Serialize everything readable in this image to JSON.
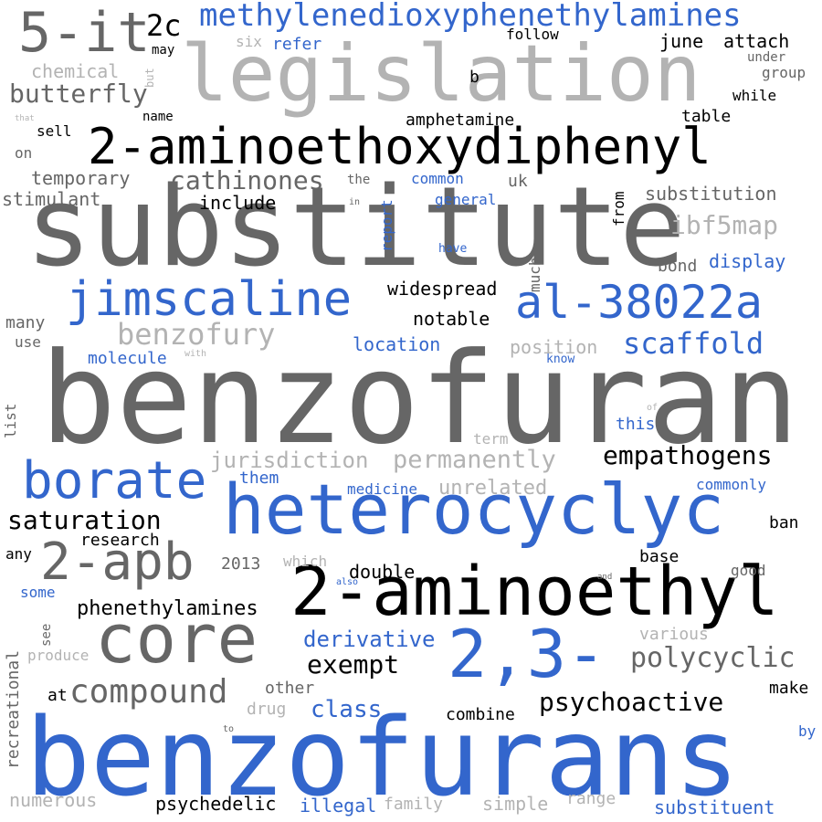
{
  "palette": {
    "black": "#000000",
    "blue": "#3366cc",
    "dark_gray": "#666666",
    "light_gray": "#b3b3b3"
  },
  "words": [
    {
      "text": "benzofuran",
      "color": "dark_gray",
      "size": 138
    },
    {
      "text": "substitute",
      "color": "dark_gray",
      "size": 120
    },
    {
      "text": "benzofurans",
      "color": "blue",
      "size": 118
    },
    {
      "text": "legislation",
      "color": "light_gray",
      "size": 86
    },
    {
      "text": "heterocyclyc",
      "color": "blue",
      "size": 76
    },
    {
      "text": "2-aminoethyl",
      "color": "black",
      "size": 74
    },
    {
      "text": "core",
      "color": "dark_gray",
      "size": 74
    },
    {
      "text": "2,3-",
      "color": "blue",
      "size": 72
    },
    {
      "text": "5-it",
      "color": "dark_gray",
      "size": 60
    },
    {
      "text": "2-aminoethoxydiphenyl",
      "color": "black",
      "size": 54
    },
    {
      "text": "borate",
      "color": "blue",
      "size": 56
    },
    {
      "text": "2-apb",
      "color": "dark_gray",
      "size": 56
    },
    {
      "text": "jimscaline",
      "color": "blue",
      "size": 52
    },
    {
      "text": "al-38022a",
      "color": "blue",
      "size": 50
    },
    {
      "text": "methylenedioxyphenethylamines",
      "color": "blue",
      "size": 34
    },
    {
      "text": "compound",
      "color": "dark_gray",
      "size": 36
    },
    {
      "text": "2c",
      "color": "black",
      "size": 32
    },
    {
      "text": "benzofury",
      "color": "light_gray",
      "size": 32
    },
    {
      "text": "scaffold",
      "color": "blue",
      "size": 32
    },
    {
      "text": "polycyclic",
      "color": "dark_gray",
      "size": 30
    },
    {
      "text": "butterfly",
      "color": "dark_gray",
      "size": 28
    },
    {
      "text": "cathinones",
      "color": "dark_gray",
      "size": 28
    },
    {
      "text": "ibf5map",
      "color": "light_gray",
      "size": 28
    },
    {
      "text": "empathogens",
      "color": "black",
      "size": 28
    },
    {
      "text": "saturation",
      "color": "black",
      "size": 28
    },
    {
      "text": "exempt",
      "color": "black",
      "size": 28
    },
    {
      "text": "psychoactive",
      "color": "black",
      "size": 28
    },
    {
      "text": "permanently",
      "color": "light_gray",
      "size": 27
    },
    {
      "text": "jurisdiction",
      "color": "light_gray",
      "size": 24
    },
    {
      "text": "class",
      "color": "blue",
      "size": 26
    },
    {
      "text": "derivative",
      "color": "blue",
      "size": 24
    },
    {
      "text": "unrelated",
      "color": "light_gray",
      "size": 22
    },
    {
      "text": "phenethylamines",
      "color": "black",
      "size": 22
    },
    {
      "text": "location",
      "color": "blue",
      "size": 20
    },
    {
      "text": "widespread",
      "color": "black",
      "size": 20
    },
    {
      "text": "notable",
      "color": "black",
      "size": 20
    },
    {
      "text": "amphetamine",
      "color": "black",
      "size": 18
    },
    {
      "text": "substitution",
      "color": "dark_gray",
      "size": 20
    },
    {
      "text": "display",
      "color": "blue",
      "size": 20
    },
    {
      "text": "temporary",
      "color": "dark_gray",
      "size": 20
    },
    {
      "text": "stimulant",
      "color": "dark_gray",
      "size": 20
    },
    {
      "text": "include",
      "color": "black",
      "size": 20
    },
    {
      "text": "june",
      "color": "black",
      "size": 20
    },
    {
      "text": "attach",
      "color": "black",
      "size": 20
    },
    {
      "text": "table",
      "color": "black",
      "size": 18
    },
    {
      "text": "position",
      "color": "light_gray",
      "size": 20
    },
    {
      "text": "molecule",
      "color": "blue",
      "size": 18
    },
    {
      "text": "research",
      "color": "black",
      "size": 18
    },
    {
      "text": "double",
      "color": "black",
      "size": 20
    },
    {
      "text": "combine",
      "color": "black",
      "size": 18
    },
    {
      "text": "psychedelic",
      "color": "black",
      "size": 20
    },
    {
      "text": "illegal",
      "color": "blue",
      "size": 20
    },
    {
      "text": "family",
      "color": "light_gray",
      "size": 18
    },
    {
      "text": "simple",
      "color": "light_gray",
      "size": 20
    },
    {
      "text": "substituent",
      "color": "blue",
      "size": 20
    },
    {
      "text": "numerous",
      "color": "light_gray",
      "size": 20
    },
    {
      "text": "medicine",
      "color": "blue",
      "size": 16
    },
    {
      "text": "commonly",
      "color": "blue",
      "size": 16
    },
    {
      "text": "various",
      "color": "light_gray",
      "size": 18
    },
    {
      "text": "make",
      "color": "black",
      "size": 18
    },
    {
      "text": "ban",
      "color": "black",
      "size": 18
    },
    {
      "text": "base",
      "color": "black",
      "size": 18
    },
    {
      "text": "good",
      "color": "dark_gray",
      "size": 16
    },
    {
      "text": "bond",
      "color": "dark_gray",
      "size": 18
    },
    {
      "text": "follow",
      "color": "black",
      "size": 16
    },
    {
      "text": "group",
      "color": "dark_gray",
      "size": 16
    },
    {
      "text": "while",
      "color": "black",
      "size": 16
    },
    {
      "text": "under",
      "color": "dark_gray",
      "size": 14
    },
    {
      "text": "chemical",
      "color": "light_gray",
      "size": 20
    },
    {
      "text": "refer",
      "color": "blue",
      "size": 18
    },
    {
      "text": "six",
      "color": "light_gray",
      "size": 16
    },
    {
      "text": "may",
      "color": "black",
      "size": 14
    },
    {
      "text": "name",
      "color": "black",
      "size": 14
    },
    {
      "text": "sell",
      "color": "black",
      "size": 16
    },
    {
      "text": "on",
      "color": "dark_gray",
      "size": 16
    },
    {
      "text": "common",
      "color": "blue",
      "size": 16
    },
    {
      "text": "general",
      "color": "blue",
      "size": 16
    },
    {
      "text": "uk",
      "color": "dark_gray",
      "size": 18
    },
    {
      "text": "the",
      "color": "dark_gray",
      "size": 14
    },
    {
      "text": "have",
      "color": "blue",
      "size": 13
    },
    {
      "text": "many",
      "color": "dark_gray",
      "size": 18
    },
    {
      "text": "use",
      "color": "dark_gray",
      "size": 16
    },
    {
      "text": "know",
      "color": "blue",
      "size": 13
    },
    {
      "text": "this",
      "color": "blue",
      "size": 18
    },
    {
      "text": "term",
      "color": "light_gray",
      "size": 16
    },
    {
      "text": "them",
      "color": "blue",
      "size": 18
    },
    {
      "text": "2013",
      "color": "dark_gray",
      "size": 18
    },
    {
      "text": "which",
      "color": "light_gray",
      "size": 16
    },
    {
      "text": "any",
      "color": "black",
      "size": 16
    },
    {
      "text": "some",
      "color": "blue",
      "size": 16
    },
    {
      "text": "at",
      "color": "black",
      "size": 18
    },
    {
      "text": "other",
      "color": "dark_gray",
      "size": 18
    },
    {
      "text": "drug",
      "color": "light_gray",
      "size": 18
    },
    {
      "text": "produce",
      "color": "light_gray",
      "size": 16
    },
    {
      "text": "by",
      "color": "blue",
      "size": 16
    },
    {
      "text": "range",
      "color": "light_gray",
      "size": 18
    },
    {
      "text": "b",
      "color": "black",
      "size": 18
    },
    {
      "text": "with",
      "color": "light_gray",
      "size": 10
    },
    {
      "text": "also",
      "color": "blue",
      "size": 10
    },
    {
      "text": "and",
      "color": "dark_gray",
      "size": 9
    },
    {
      "text": "to",
      "color": "dark_gray",
      "size": 10
    },
    {
      "text": "of",
      "color": "light_gray",
      "size": 10
    },
    {
      "text": "in",
      "color": "dark_gray",
      "size": 10
    },
    {
      "text": "that",
      "color": "light_gray",
      "size": 9
    },
    {
      "text": "list",
      "color": "dark_gray",
      "size": 16
    },
    {
      "text": "see",
      "color": "dark_gray",
      "size": 14
    },
    {
      "text": "recreational",
      "color": "dark_gray",
      "size": 18
    },
    {
      "text": "report",
      "color": "blue",
      "size": 16
    },
    {
      "text": "from",
      "color": "black",
      "size": 16
    },
    {
      "text": "much",
      "color": "dark_gray",
      "size": 16
    },
    {
      "text": "but",
      "color": "light_gray",
      "size": 12
    }
  ]
}
